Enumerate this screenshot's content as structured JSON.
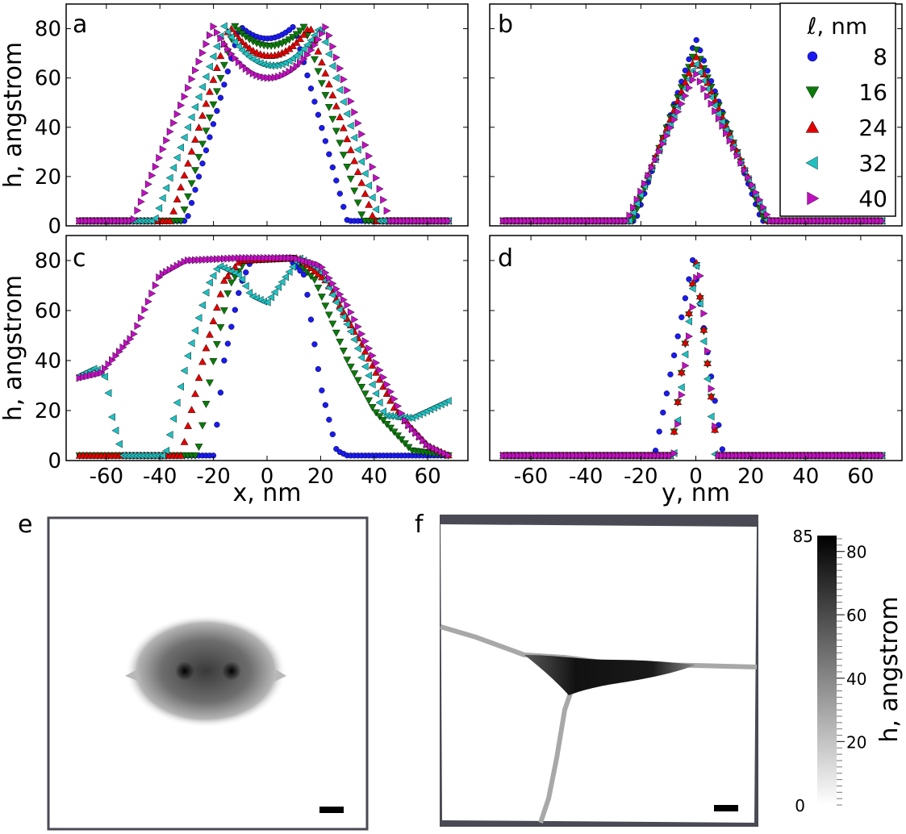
{
  "figure_labels": {
    "a": "a",
    "b": "b",
    "c": "c",
    "d": "d",
    "e": "e",
    "f": "f"
  },
  "colorbar": {
    "label": "h, angstrom",
    "max_label": "85",
    "min_label": "0",
    "range": [
      0,
      85
    ],
    "ticks": [
      20,
      40,
      60,
      80
    ]
  },
  "panels_e_f": {
    "scale_bar": "▬"
  },
  "chart_data": [
    {
      "panel": "a",
      "type": "scatter",
      "xlabel": "",
      "ylabel": "h, angstrom",
      "xlim": [
        -75,
        75
      ],
      "ylim": [
        0,
        90
      ],
      "yticks": [
        0,
        20,
        40,
        60,
        80
      ],
      "xticks": [
        -60,
        -40,
        -20,
        0,
        20,
        40,
        60
      ],
      "profile": "plateau",
      "series": [
        {
          "name": "8",
          "bottom_left": -30,
          "top_left": -10,
          "top_right": 10,
          "bottom_right": 30,
          "top_edge": 81,
          "top_center": 76,
          "floor": 2
        },
        {
          "name": "16",
          "bottom_left": -32,
          "top_left": -12,
          "top_right": 14,
          "bottom_right": 36,
          "top_edge": 81,
          "top_center": 73,
          "floor": 2
        },
        {
          "name": "24",
          "bottom_left": -36,
          "top_left": -14,
          "top_right": 16,
          "bottom_right": 40,
          "top_edge": 81,
          "top_center": 69,
          "floor": 2
        },
        {
          "name": "32",
          "bottom_left": -42,
          "top_left": -16,
          "top_right": 20,
          "bottom_right": 42,
          "top_edge": 81,
          "top_center": 65,
          "floor": 2
        },
        {
          "name": "40",
          "bottom_left": -50,
          "top_left": -20,
          "top_right": 22,
          "bottom_right": 46,
          "top_edge": 81,
          "top_center": 60,
          "floor": 2
        }
      ]
    },
    {
      "panel": "b",
      "type": "scatter",
      "xlabel": "",
      "ylabel": "",
      "xlim": [
        -75,
        75
      ],
      "ylim": [
        0,
        90
      ],
      "yticks": [
        0,
        20,
        40,
        60,
        80
      ],
      "xticks": [
        -60,
        -40,
        -20,
        0,
        20,
        40,
        60
      ],
      "profile": "peak",
      "legend_title": "ℓ, nm",
      "legend_location": "top-right",
      "series": [
        {
          "name": "8",
          "bottom_left": -22,
          "bottom_right": 24,
          "peak_x": 0,
          "peak": 76,
          "floor": 2
        },
        {
          "name": "16",
          "bottom_left": -23,
          "bottom_right": 25,
          "peak_x": 0,
          "peak": 72,
          "floor": 2
        },
        {
          "name": "24",
          "bottom_left": -24,
          "bottom_right": 26,
          "peak_x": 0,
          "peak": 69,
          "floor": 2
        },
        {
          "name": "32",
          "bottom_left": -24,
          "bottom_right": 26,
          "peak_x": 0,
          "peak": 66,
          "floor": 2
        },
        {
          "name": "40",
          "bottom_left": -25,
          "bottom_right": 27,
          "peak_x": 0,
          "peak": 62,
          "floor": 2
        }
      ]
    },
    {
      "panel": "c",
      "type": "scatter",
      "xlabel": "x, nm",
      "ylabel": "h, angstrom",
      "xlim": [
        -75,
        75
      ],
      "ylim": [
        0,
        90
      ],
      "yticks": [
        0,
        20,
        40,
        60,
        80
      ],
      "xticks": [
        -60,
        -40,
        -20,
        0,
        20,
        40,
        60
      ],
      "profile": "polyline",
      "series": [
        {
          "name": "8",
          "points": [
            [
              -70,
              2
            ],
            [
              -20,
              2
            ],
            [
              -16,
              40
            ],
            [
              -10,
              70
            ],
            [
              -6,
              80
            ],
            [
              8,
              81
            ],
            [
              14,
              74
            ],
            [
              20,
              30
            ],
            [
              26,
              4
            ],
            [
              30,
              2
            ],
            [
              68,
              2
            ]
          ]
        },
        {
          "name": "16",
          "points": [
            [
              -70,
              2
            ],
            [
              -26,
              2
            ],
            [
              -20,
              40
            ],
            [
              -14,
              70
            ],
            [
              -8,
              80
            ],
            [
              10,
              81
            ],
            [
              18,
              72
            ],
            [
              30,
              40
            ],
            [
              40,
              20
            ],
            [
              54,
              4
            ],
            [
              68,
              2
            ]
          ]
        },
        {
          "name": "24",
          "points": [
            [
              -70,
              2
            ],
            [
              -32,
              2
            ],
            [
              -24,
              40
            ],
            [
              -16,
              72
            ],
            [
              -10,
              80
            ],
            [
              12,
              81
            ],
            [
              22,
              72
            ],
            [
              36,
              45
            ],
            [
              48,
              20
            ],
            [
              60,
              6
            ],
            [
              68,
              2
            ]
          ]
        },
        {
          "name": "32",
          "points": [
            [
              -70,
              34
            ],
            [
              -64,
              37
            ],
            [
              -60,
              33
            ],
            [
              -58,
              18
            ],
            [
              -54,
              2
            ],
            [
              -38,
              2
            ],
            [
              -30,
              40
            ],
            [
              -22,
              70
            ],
            [
              -18,
              78
            ],
            [
              -10,
              74
            ],
            [
              -6,
              66
            ],
            [
              0,
              63
            ],
            [
              6,
              72
            ],
            [
              12,
              81
            ],
            [
              20,
              76
            ],
            [
              32,
              50
            ],
            [
              44,
              18
            ],
            [
              54,
              17
            ],
            [
              68,
              24
            ]
          ]
        },
        {
          "name": "40",
          "points": [
            [
              -70,
              33
            ],
            [
              -62,
              35
            ],
            [
              -50,
              50
            ],
            [
              -40,
              74
            ],
            [
              -30,
              80
            ],
            [
              -10,
              81
            ],
            [
              10,
              81
            ],
            [
              20,
              78
            ],
            [
              30,
              62
            ],
            [
              44,
              32
            ],
            [
              52,
              15
            ],
            [
              60,
              6
            ],
            [
              68,
              2
            ]
          ]
        }
      ]
    },
    {
      "panel": "d",
      "type": "scatter",
      "xlabel": "y, nm",
      "ylabel": "",
      "xlim": [
        -75,
        75
      ],
      "ylim": [
        0,
        90
      ],
      "yticks": [
        0,
        20,
        40,
        60,
        80
      ],
      "xticks": [
        -60,
        -40,
        -20,
        0,
        20,
        40,
        60
      ],
      "profile": "peak",
      "series": [
        {
          "name": "8",
          "bottom_left": -15,
          "bottom_right": 10,
          "peak_x": -1,
          "peak": 81,
          "floor": 2
        },
        {
          "name": "16",
          "bottom_left": -9,
          "bottom_right": 8,
          "peak_x": 0,
          "peak": 80,
          "floor": 2
        },
        {
          "name": "24",
          "bottom_left": -9,
          "bottom_right": 8,
          "peak_x": 0,
          "peak": 81,
          "floor": 2
        },
        {
          "name": "32",
          "bottom_left": -8,
          "bottom_right": 7,
          "peak_x": 0,
          "peak": 80,
          "floor": 2
        },
        {
          "name": "40",
          "bottom_left": -8,
          "bottom_right": 8,
          "peak_x": 1,
          "peak": 80,
          "floor": 2
        }
      ]
    }
  ]
}
